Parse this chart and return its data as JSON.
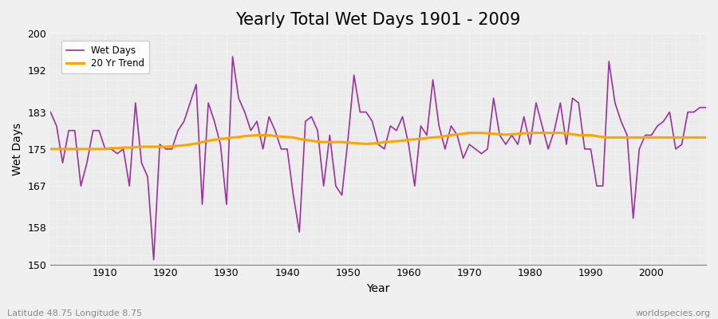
{
  "title": "Yearly Total Wet Days 1901 - 2009",
  "xlabel": "Year",
  "ylabel": "Wet Days",
  "footnote_left": "Latitude 48.75 Longitude 8.75",
  "footnote_right": "worldspecies.org",
  "ylim": [
    150,
    200
  ],
  "yticks": [
    150,
    158,
    167,
    175,
    183,
    192,
    200
  ],
  "xlim": [
    1901,
    2009
  ],
  "xticks": [
    1910,
    1920,
    1930,
    1940,
    1950,
    1960,
    1970,
    1980,
    1990,
    2000
  ],
  "background_color": "#f0f0f0",
  "plot_bg_color": "#ececec",
  "wet_days_color": "#993399",
  "trend_color": "#FFA500",
  "wet_days": [
    183,
    180,
    172,
    179,
    179,
    167,
    172,
    179,
    179,
    175,
    175,
    174,
    175,
    167,
    185,
    172,
    169,
    151,
    176,
    175,
    175,
    179,
    181,
    185,
    189,
    163,
    185,
    181,
    176,
    163,
    195,
    186,
    183,
    179,
    181,
    175,
    182,
    179,
    175,
    175,
    165,
    157,
    181,
    182,
    179,
    167,
    178,
    167,
    165,
    177,
    191,
    183,
    183,
    181,
    176,
    175,
    180,
    179,
    182,
    176,
    167,
    180,
    178,
    190,
    180,
    175,
    180,
    178,
    173,
    176,
    175,
    174,
    175,
    186,
    178,
    176,
    178,
    176,
    182,
    176,
    185,
    180,
    175,
    179,
    185,
    176,
    186,
    185,
    175,
    175,
    167,
    167,
    194,
    185,
    181,
    178,
    160,
    175,
    178,
    178,
    180,
    181,
    183,
    175,
    176,
    183,
    183,
    184,
    184
  ],
  "trend": [
    175.0,
    175.0,
    175.0,
    175.0,
    175.0,
    175.0,
    175.0,
    175.0,
    175.0,
    175.0,
    175.2,
    175.2,
    175.3,
    175.3,
    175.4,
    175.5,
    175.5,
    175.5,
    175.5,
    175.5,
    175.6,
    175.7,
    175.8,
    176.0,
    176.2,
    176.5,
    176.8,
    177.0,
    177.2,
    177.3,
    177.5,
    177.6,
    177.8,
    177.9,
    178.0,
    178.0,
    178.0,
    177.8,
    177.7,
    177.6,
    177.5,
    177.2,
    177.0,
    176.8,
    176.6,
    176.5,
    176.5,
    176.5,
    176.5,
    176.4,
    176.3,
    176.2,
    176.1,
    176.2,
    176.3,
    176.5,
    176.6,
    176.7,
    176.8,
    177.0,
    177.1,
    177.2,
    177.4,
    177.5,
    177.6,
    177.8,
    178.0,
    178.2,
    178.3,
    178.5,
    178.5,
    178.5,
    178.4,
    178.3,
    178.2,
    178.1,
    178.2,
    178.3,
    178.4,
    178.5,
    178.5,
    178.5,
    178.5,
    178.5,
    178.5,
    178.4,
    178.2,
    178.0,
    178.0,
    178.0,
    177.8,
    177.6,
    177.5,
    177.5,
    177.5,
    177.5,
    177.5,
    177.5,
    177.5,
    177.5,
    177.5,
    177.5,
    177.5,
    177.5,
    177.5,
    177.5,
    177.5,
    177.5,
    177.5
  ]
}
